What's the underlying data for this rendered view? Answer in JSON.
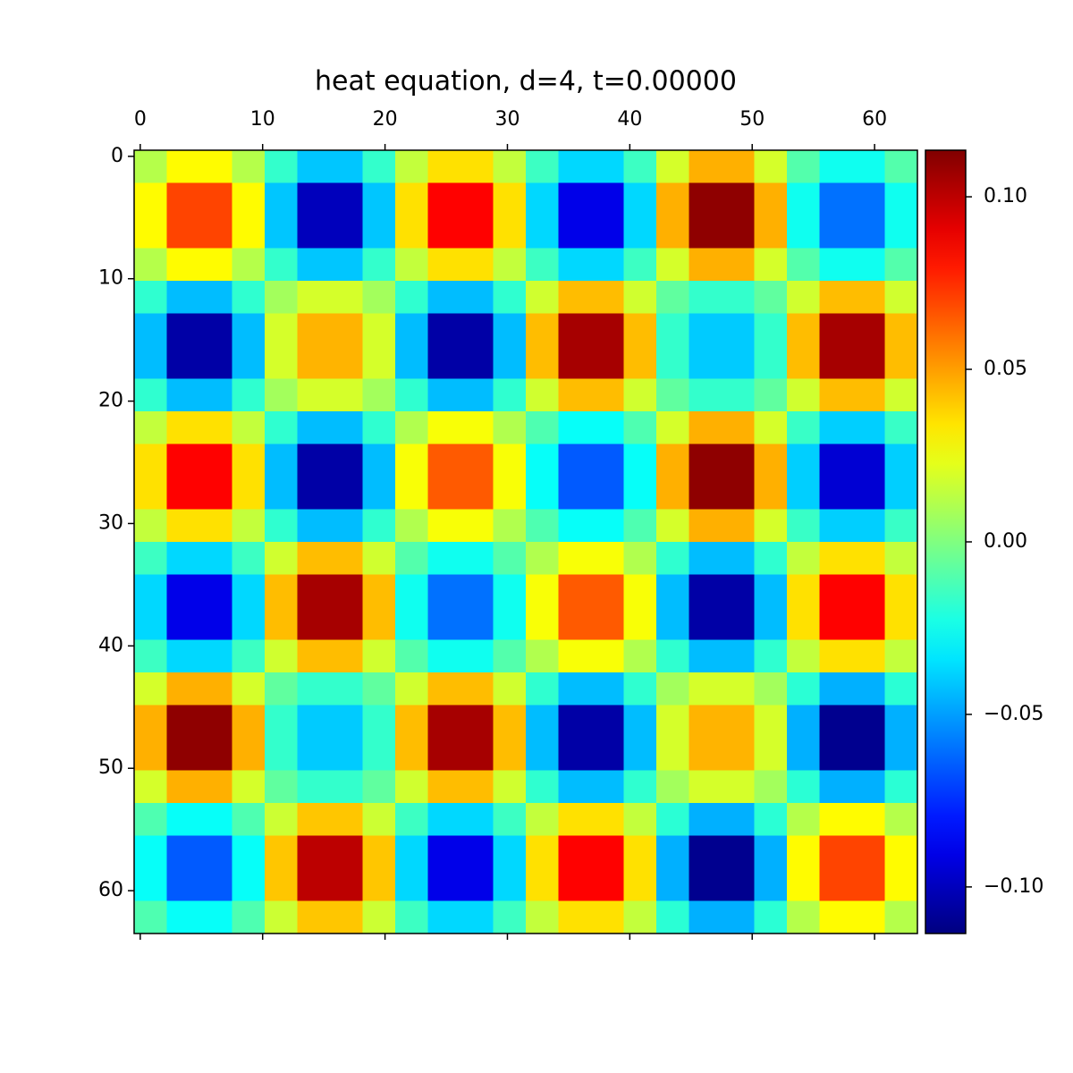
{
  "chart_data": {
    "type": "heatmap",
    "title": "heat equation, d=4, t=0.00000",
    "colormap": "jet",
    "xlim": [
      -0.5,
      63.5
    ],
    "ylim": [
      63.5,
      -0.5
    ],
    "xticks": [
      0,
      10,
      20,
      30,
      40,
      50,
      60
    ],
    "yticks": [
      0,
      10,
      20,
      30,
      40,
      50,
      60
    ],
    "clim": [
      -0.1135,
      0.1135
    ],
    "cticks": [
      {
        "value": -0.1,
        "label": "−0.10"
      },
      {
        "value": -0.05,
        "label": "−0.05"
      },
      {
        "value": 0,
        "label": "0.00"
      },
      {
        "value": 0.05,
        "label": "0.05"
      },
      {
        "value": 0.1,
        "label": "0.10"
      }
    ],
    "z": [
      [
        0.012,
        0.029,
        0.029,
        0.012,
        -0.017,
        -0.041,
        -0.041,
        -0.017,
        0.015,
        0.035,
        0.035,
        0.015,
        -0.015,
        -0.037,
        -0.037,
        -0.015,
        0.019,
        0.046,
        0.046,
        0.019,
        -0.01,
        -0.025,
        -0.025,
        -0.01
      ],
      [
        0.029,
        0.07,
        0.07,
        0.029,
        -0.041,
        -0.1,
        -0.1,
        -0.041,
        0.035,
        0.085,
        0.085,
        0.035,
        -0.037,
        -0.09,
        -0.09,
        -0.037,
        0.046,
        0.11,
        0.11,
        0.046,
        -0.025,
        -0.06,
        -0.06,
        -0.025
      ],
      [
        0.029,
        0.07,
        0.07,
        0.029,
        -0.041,
        -0.1,
        -0.1,
        -0.041,
        0.035,
        0.085,
        0.085,
        0.035,
        -0.037,
        -0.09,
        -0.09,
        -0.037,
        0.046,
        0.11,
        0.11,
        0.046,
        -0.025,
        -0.06,
        -0.06,
        -0.025
      ],
      [
        0.012,
        0.029,
        0.029,
        0.012,
        -0.017,
        -0.041,
        -0.041,
        -0.017,
        0.015,
        0.035,
        0.035,
        0.015,
        -0.015,
        -0.037,
        -0.037,
        -0.015,
        0.019,
        0.046,
        0.046,
        0.019,
        -0.01,
        -0.025,
        -0.025,
        -0.01
      ],
      [
        -0.018,
        -0.043,
        -0.043,
        -0.018,
        0.008,
        0.019,
        0.019,
        0.008,
        -0.018,
        -0.043,
        -0.043,
        -0.018,
        0.018,
        0.043,
        0.043,
        0.018,
        -0.007,
        -0.017,
        -0.017,
        -0.007,
        0.018,
        0.043,
        0.043,
        0.018
      ],
      [
        -0.043,
        -0.105,
        -0.105,
        -0.043,
        0.019,
        0.045,
        0.045,
        0.019,
        -0.043,
        -0.105,
        -0.105,
        -0.043,
        0.043,
        0.105,
        0.105,
        0.043,
        -0.017,
        -0.04,
        -0.04,
        -0.017,
        0.043,
        0.105,
        0.105,
        0.043
      ],
      [
        -0.043,
        -0.105,
        -0.105,
        -0.043,
        0.019,
        0.045,
        0.045,
        0.019,
        -0.043,
        -0.105,
        -0.105,
        -0.043,
        0.043,
        0.105,
        0.105,
        0.043,
        -0.017,
        -0.04,
        -0.04,
        -0.017,
        0.043,
        0.105,
        0.105,
        0.043
      ],
      [
        -0.018,
        -0.043,
        -0.043,
        -0.018,
        0.008,
        0.019,
        0.019,
        0.008,
        -0.018,
        -0.043,
        -0.043,
        -0.018,
        0.018,
        0.043,
        0.043,
        0.018,
        -0.007,
        -0.017,
        -0.017,
        -0.007,
        0.018,
        0.043,
        0.043,
        0.018
      ],
      [
        0.015,
        0.035,
        0.035,
        0.015,
        -0.018,
        -0.043,
        -0.043,
        -0.018,
        0.011,
        0.027,
        0.027,
        0.011,
        -0.011,
        -0.027,
        -0.027,
        -0.011,
        0.019,
        0.046,
        0.046,
        0.019,
        -0.016,
        -0.039,
        -0.039,
        -0.016
      ],
      [
        0.035,
        0.085,
        0.085,
        0.035,
        -0.043,
        -0.105,
        -0.105,
        -0.043,
        0.027,
        0.065,
        0.065,
        0.027,
        -0.027,
        -0.065,
        -0.065,
        -0.027,
        0.046,
        0.11,
        0.11,
        0.046,
        -0.039,
        -0.095,
        -0.095,
        -0.039
      ],
      [
        0.035,
        0.085,
        0.085,
        0.035,
        -0.043,
        -0.105,
        -0.105,
        -0.043,
        0.027,
        0.065,
        0.065,
        0.027,
        -0.027,
        -0.065,
        -0.065,
        -0.027,
        0.046,
        0.11,
        0.11,
        0.046,
        -0.039,
        -0.095,
        -0.095,
        -0.039
      ],
      [
        0.015,
        0.035,
        0.035,
        0.015,
        -0.018,
        -0.043,
        -0.043,
        -0.018,
        0.011,
        0.027,
        0.027,
        0.011,
        -0.011,
        -0.027,
        -0.027,
        -0.011,
        0.019,
        0.046,
        0.046,
        0.019,
        -0.016,
        -0.039,
        -0.039,
        -0.016
      ],
      [
        -0.015,
        -0.037,
        -0.037,
        -0.015,
        0.018,
        0.043,
        0.043,
        0.018,
        -0.01,
        -0.025,
        -0.025,
        -0.01,
        0.011,
        0.027,
        0.027,
        0.011,
        -0.018,
        -0.043,
        -0.043,
        -0.018,
        0.015,
        0.035,
        0.035,
        0.015
      ],
      [
        -0.037,
        -0.09,
        -0.09,
        -0.037,
        0.043,
        0.105,
        0.105,
        0.043,
        -0.025,
        -0.06,
        -0.06,
        -0.025,
        0.027,
        0.065,
        0.065,
        0.027,
        -0.043,
        -0.105,
        -0.105,
        -0.043,
        0.035,
        0.085,
        0.085,
        0.035
      ],
      [
        -0.037,
        -0.09,
        -0.09,
        -0.037,
        0.043,
        0.105,
        0.105,
        0.043,
        -0.025,
        -0.06,
        -0.06,
        -0.025,
        0.027,
        0.065,
        0.065,
        0.027,
        -0.043,
        -0.105,
        -0.105,
        -0.043,
        0.035,
        0.085,
        0.085,
        0.035
      ],
      [
        -0.015,
        -0.037,
        -0.037,
        -0.015,
        0.018,
        0.043,
        0.043,
        0.018,
        -0.01,
        -0.025,
        -0.025,
        -0.01,
        0.011,
        0.027,
        0.027,
        0.011,
        -0.018,
        -0.043,
        -0.043,
        -0.018,
        0.015,
        0.035,
        0.035,
        0.015
      ],
      [
        0.019,
        0.046,
        0.046,
        0.019,
        -0.007,
        -0.017,
        -0.017,
        -0.007,
        0.018,
        0.043,
        0.043,
        0.018,
        -0.018,
        -0.043,
        -0.043,
        -0.018,
        0.008,
        0.019,
        0.019,
        0.008,
        -0.019,
        -0.046,
        -0.046,
        -0.019
      ],
      [
        0.046,
        0.11,
        0.11,
        0.046,
        -0.017,
        -0.04,
        -0.04,
        -0.017,
        0.043,
        0.105,
        0.105,
        0.043,
        -0.043,
        -0.105,
        -0.105,
        -0.043,
        0.019,
        0.045,
        0.045,
        0.019,
        -0.046,
        -0.11,
        -0.11,
        -0.046
      ],
      [
        0.046,
        0.11,
        0.11,
        0.046,
        -0.017,
        -0.04,
        -0.04,
        -0.017,
        0.043,
        0.105,
        0.105,
        0.043,
        -0.043,
        -0.105,
        -0.105,
        -0.043,
        0.019,
        0.045,
        0.045,
        0.019,
        -0.046,
        -0.11,
        -0.11,
        -0.046
      ],
      [
        0.019,
        0.046,
        0.046,
        0.019,
        -0.007,
        -0.017,
        -0.017,
        -0.007,
        0.018,
        0.043,
        0.043,
        0.018,
        -0.018,
        -0.043,
        -0.043,
        -0.018,
        0.008,
        0.019,
        0.019,
        0.008,
        -0.019,
        -0.046,
        -0.046,
        -0.019
      ],
      [
        -0.011,
        -0.027,
        -0.027,
        -0.011,
        0.017,
        0.041,
        0.041,
        0.017,
        -0.015,
        -0.037,
        -0.037,
        -0.015,
        0.015,
        0.035,
        0.035,
        0.015,
        -0.019,
        -0.046,
        -0.046,
        -0.019,
        0.012,
        0.029,
        0.029,
        0.012
      ],
      [
        -0.027,
        -0.065,
        -0.065,
        -0.027,
        0.041,
        0.1,
        0.1,
        0.041,
        -0.037,
        -0.09,
        -0.09,
        -0.037,
        0.035,
        0.085,
        0.085,
        0.035,
        -0.046,
        -0.11,
        -0.11,
        -0.046,
        0.029,
        0.07,
        0.07,
        0.029
      ],
      [
        -0.027,
        -0.065,
        -0.065,
        -0.027,
        0.041,
        0.1,
        0.1,
        0.041,
        -0.037,
        -0.09,
        -0.09,
        -0.037,
        0.035,
        0.085,
        0.085,
        0.035,
        -0.046,
        -0.11,
        -0.11,
        -0.046,
        0.029,
        0.07,
        0.07,
        0.029
      ],
      [
        -0.011,
        -0.027,
        -0.027,
        -0.011,
        0.017,
        0.041,
        0.041,
        0.017,
        -0.015,
        -0.037,
        -0.037,
        -0.015,
        0.015,
        0.035,
        0.035,
        0.015,
        -0.019,
        -0.046,
        -0.046,
        -0.019,
        0.012,
        0.029,
        0.029,
        0.012
      ]
    ]
  }
}
